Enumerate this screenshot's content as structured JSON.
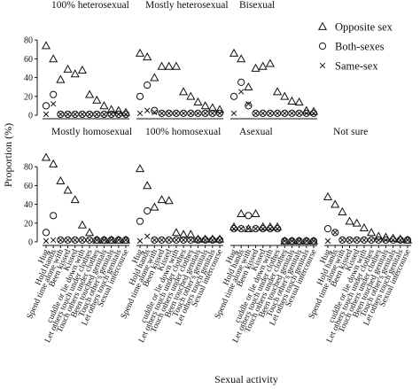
{
  "chart_data": {
    "type": "scatter",
    "ylabel": "Proportion (%)",
    "xlabel": "Sexual activity",
    "ylim": [
      0,
      100
    ],
    "yticks": [
      0,
      20,
      40,
      60,
      80
    ],
    "categories": [
      "Hug",
      "Hold hands",
      "Spend time alone with",
      "Been kissed",
      "Kissed",
      "cuddle or lie down with",
      "Let others touch under clothes",
      "Touch others under clothes",
      "Been touched genitals",
      "Touch other's genitals",
      "Let others touch genitals",
      "Sexual intercourse"
    ],
    "legend": {
      "position": "top-right",
      "entries": [
        {
          "name": "Opposite sex",
          "marker": "triangle"
        },
        {
          "name": "Both-sexes",
          "marker": "circle"
        },
        {
          "name": "Same-sex",
          "marker": "cross"
        }
      ]
    },
    "panels": [
      {
        "title": "100% heterosexual",
        "series": [
          {
            "name": "Opposite sex",
            "values": [
              74,
              60,
              38,
              49,
              44,
              48,
              22,
              16,
              10,
              6,
              5,
              3
            ]
          },
          {
            "name": "Both-sexes",
            "values": [
              10,
              22,
              1,
              1,
              1,
              1,
              1,
              1,
              1,
              1,
              1,
              1
            ]
          },
          {
            "name": "Same-sex",
            "values": [
              1,
              12,
              1,
              1,
              1,
              1,
              1,
              1,
              1,
              1,
              1,
              1
            ]
          }
        ]
      },
      {
        "title": "Mostly heterosexual",
        "series": [
          {
            "name": "Opposite sex",
            "values": [
              66,
              62,
              40,
              52,
              52,
              52,
              25,
              20,
              14,
              10,
              8,
              6
            ]
          },
          {
            "name": "Both-sexes",
            "values": [
              20,
              32,
              5,
              2,
              2,
              2,
              2,
              2,
              2,
              2,
              2,
              2
            ]
          },
          {
            "name": "Same-sex",
            "values": [
              2,
              5,
              3,
              2,
              2,
              2,
              2,
              2,
              2,
              2,
              2,
              2
            ]
          }
        ]
      },
      {
        "title": "Bisexual",
        "series": [
          {
            "name": "Opposite sex",
            "values": [
              66,
              60,
              30,
              50,
              52,
              55,
              25,
              20,
              15,
              14,
              5,
              4
            ]
          },
          {
            "name": "Both-sexes",
            "values": [
              20,
              35,
              10,
              2,
              2,
              2,
              2,
              2,
              2,
              2,
              2,
              2
            ]
          },
          {
            "name": "Same-sex",
            "values": [
              2,
              25,
              12,
              2,
              2,
              2,
              2,
              2,
              2,
              2,
              2,
              2
            ]
          }
        ]
      },
      {
        "title": "Mostly homosexual",
        "series": [
          {
            "name": "Opposite sex",
            "values": [
              90,
              83,
              65,
              55,
              45,
              18,
              10,
              2,
              2,
              2,
              2,
              2
            ]
          },
          {
            "name": "Both-sexes",
            "values": [
              10,
              28,
              2,
              2,
              2,
              2,
              2,
              2,
              2,
              2,
              2,
              2
            ]
          },
          {
            "name": "Same-sex",
            "values": [
              1,
              2,
              2,
              2,
              2,
              2,
              2,
              2,
              2,
              2,
              2,
              2
            ]
          }
        ]
      },
      {
        "title": "100% homosexual",
        "series": [
          {
            "name": "Opposite sex",
            "values": [
              78,
              60,
              37,
              45,
              44,
              10,
              8,
              8,
              3,
              3,
              3,
              3
            ]
          },
          {
            "name": "Both-sexes",
            "values": [
              22,
              33,
              2,
              2,
              2,
              2,
              2,
              2,
              2,
              2,
              2,
              2
            ]
          },
          {
            "name": "Same-sex",
            "values": [
              1,
              6,
              2,
              2,
              2,
              2,
              2,
              2,
              2,
              2,
              2,
              2
            ]
          }
        ]
      },
      {
        "title": "Asexual",
        "series": [
          {
            "name": "Opposite sex",
            "values": [
              16,
              30,
              14,
              30,
              16,
              16,
              16,
              1,
              1,
              1,
              1,
              1
            ]
          },
          {
            "name": "Both-sexes",
            "values": [
              14,
              14,
              28,
              14,
              14,
              14,
              14,
              1,
              1,
              1,
              1,
              1
            ]
          },
          {
            "name": "Same-sex",
            "values": [
              14,
              14,
              14,
              14,
              14,
              14,
              14,
              1,
              1,
              1,
              1,
              1
            ]
          }
        ]
      },
      {
        "title": "Not sure",
        "series": [
          {
            "name": "Opposite sex",
            "values": [
              48,
              40,
              32,
              22,
              20,
              15,
              10,
              6,
              5,
              4,
              3,
              2
            ]
          },
          {
            "name": "Both-sexes",
            "values": [
              14,
              10,
              2,
              2,
              2,
              2,
              2,
              2,
              2,
              2,
              2,
              2
            ]
          },
          {
            "name": "Same-sex",
            "values": [
              1,
              10,
              2,
              2,
              2,
              2,
              2,
              2,
              2,
              2,
              2,
              2
            ]
          }
        ]
      }
    ]
  }
}
